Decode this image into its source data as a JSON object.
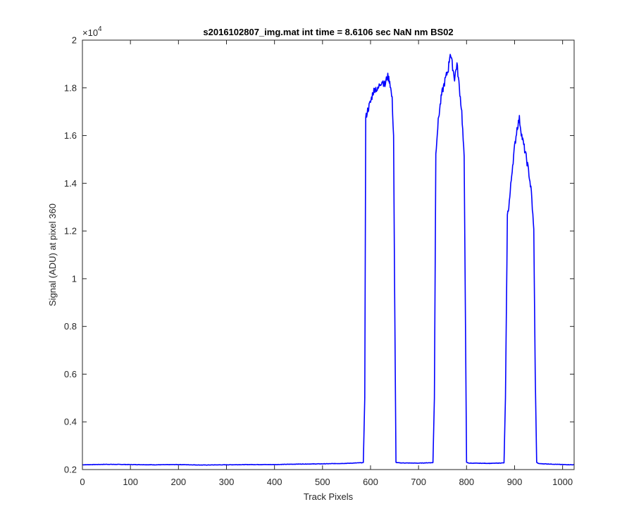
{
  "chart_data": {
    "type": "line",
    "title": "s2016102807_img.mat int time = 8.6106 sec  NaN nm BS02",
    "xlabel": "Track Pixels",
    "ylabel": "Signal (ADU) at pixel 360",
    "xlim": [
      0,
      1024
    ],
    "ylim": [
      2000,
      20000
    ],
    "x_ticks": [
      0,
      100,
      200,
      300,
      400,
      500,
      600,
      700,
      800,
      900,
      1000
    ],
    "y_ticks": [
      2000,
      4000,
      6000,
      8000,
      10000,
      12000,
      14000,
      16000,
      18000,
      20000
    ],
    "y_tick_labels": [
      "0.2",
      "0.4",
      "0.6",
      "0.8",
      "1",
      "1.2",
      "1.4",
      "1.6",
      "1.8",
      "2"
    ],
    "y_multiplier_base": "×10",
    "y_multiplier_exp": "4",
    "grid": false,
    "colors": {
      "line": "#0000ff",
      "axes": "#262626"
    },
    "series": [
      {
        "x": [
          0,
          50,
          100,
          150,
          200,
          250,
          300,
          350,
          400,
          450,
          500,
          550,
          585,
          588,
          590,
          593,
          600,
          605,
          610,
          615,
          620,
          625,
          630,
          635,
          640,
          645,
          648,
          650,
          653,
          660,
          700,
          730,
          733,
          736,
          738,
          742,
          748,
          755,
          762,
          766,
          770,
          775,
          780,
          785,
          790,
          795,
          797,
          800,
          805,
          850,
          878,
          881,
          885,
          890,
          895,
          900,
          905,
          910,
          915,
          920,
          925,
          930,
          935,
          940,
          943,
          946,
          950,
          1000,
          1024
        ],
        "y": [
          2200,
          2220,
          2210,
          2200,
          2210,
          2190,
          2200,
          2210,
          2210,
          2230,
          2240,
          2260,
          2290,
          5000,
          16700,
          17000,
          17400,
          17800,
          18000,
          17900,
          18200,
          18300,
          18100,
          18500,
          18300,
          17500,
          16000,
          10000,
          2300,
          2280,
          2270,
          2290,
          5000,
          15200,
          15900,
          16800,
          17700,
          18300,
          18800,
          19500,
          19000,
          18400,
          19000,
          18000,
          17000,
          15000,
          10000,
          2300,
          2270,
          2260,
          2280,
          5000,
          12600,
          13400,
          14600,
          15500,
          16300,
          16700,
          16000,
          15500,
          15000,
          14400,
          13600,
          12000,
          6000,
          2300,
          2250,
          2210,
          2200
        ]
      }
    ]
  }
}
